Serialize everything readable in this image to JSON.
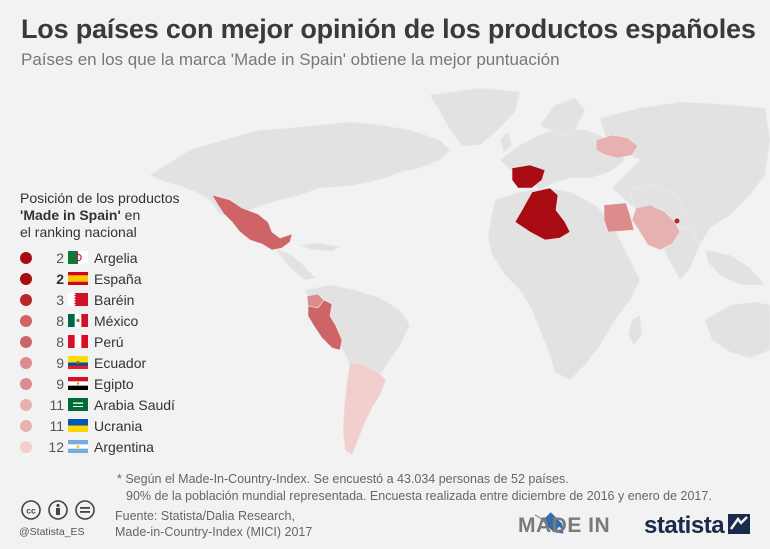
{
  "title": "Los países con mejor opinión de los productos españoles",
  "subtitle": "Países en los que la marca 'Made in Spain' obtiene la mejor puntuación",
  "legend": {
    "title_line1": "Posición de los productos",
    "title_bold": "'Made in Spain'",
    "title_line2_rest": " en",
    "title_line3": "el ranking nacional",
    "items": [
      {
        "rank": "2",
        "country": "Argelia",
        "color": "#a80c12",
        "flag": "algeria-flag-icon",
        "bold": false
      },
      {
        "rank": "2",
        "country": "España",
        "color": "#a80c12",
        "flag": "spain-flag-icon",
        "bold": true
      },
      {
        "rank": "3",
        "country": "Baréin",
        "color": "#b7272b",
        "flag": "bahrain-flag-icon",
        "bold": false
      },
      {
        "rank": "8",
        "country": "México",
        "color": "#cf6466",
        "flag": "mexico-flag-icon",
        "bold": false
      },
      {
        "rank": "8",
        "country": "Perú",
        "color": "#cf6466",
        "flag": "peru-flag-icon",
        "bold": false
      },
      {
        "rank": "9",
        "country": "Ecuador",
        "color": "#dc8c8c",
        "flag": "ecuador-flag-icon",
        "bold": false
      },
      {
        "rank": "9",
        "country": "Egipto",
        "color": "#dc8c8c",
        "flag": "egypt-flag-icon",
        "bold": false
      },
      {
        "rank": "11",
        "country": "Arabia Saudí",
        "color": "#e8b1b1",
        "flag": "saudi-flag-icon",
        "bold": false
      },
      {
        "rank": "11",
        "country": "Ucrania",
        "color": "#e8b1b1",
        "flag": "ukraine-flag-icon",
        "bold": false
      },
      {
        "rank": "12",
        "country": "Argentina",
        "color": "#f2cfcd",
        "flag": "argentina-flag-icon",
        "bold": false
      }
    ]
  },
  "map": {
    "land_color": "#e2e2e2",
    "highlighted": [
      {
        "country": "Argelia",
        "color": "#a80c12"
      },
      {
        "country": "España",
        "color": "#a80c12"
      },
      {
        "country": "Baréin",
        "color": "#b7272b"
      },
      {
        "country": "México",
        "color": "#cf6466"
      },
      {
        "country": "Perú",
        "color": "#cf6466"
      },
      {
        "country": "Ecuador",
        "color": "#dc8c8c"
      },
      {
        "country": "Egipto",
        "color": "#dc8c8c"
      },
      {
        "country": "Arabia Saudí",
        "color": "#e8b1b1"
      },
      {
        "country": "Ucrania",
        "color": "#e8b1b1"
      },
      {
        "country": "Argentina",
        "color": "#f2cfcd"
      }
    ]
  },
  "note": {
    "line1": "* Según el Made-In-Country-Index. Se encuestó a 43.034 personas de 52 países.",
    "line2": "90% de la población mundial representada. Encuesta realizada entre diciembre de 2016 y enero de 2017."
  },
  "source": {
    "line1": "Fuente: Statista/Dalia Research,",
    "line2": "Made-in-Country-Index (MICI) 2017"
  },
  "footer": {
    "handle": "@Statista_ES",
    "madein_logo": "MADE IN",
    "statista_logo": "statista"
  }
}
